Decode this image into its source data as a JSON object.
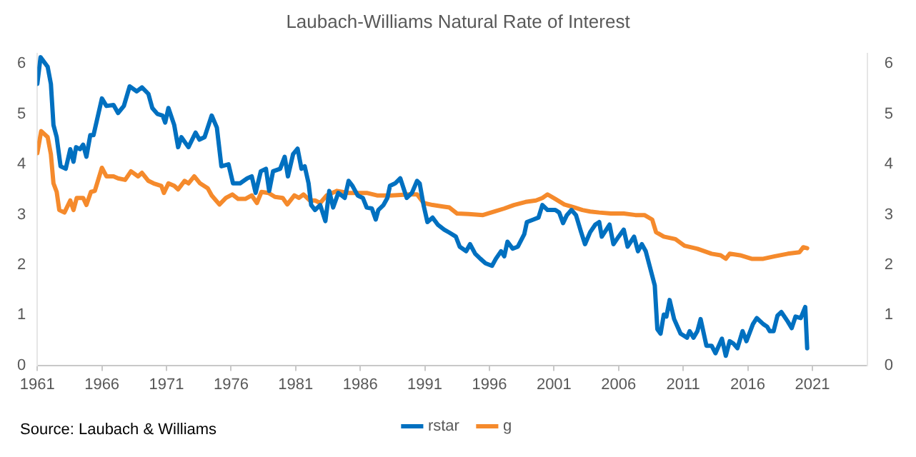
{
  "chart_data": {
    "type": "line",
    "title": "Laubach-Williams Natural Rate of Interest",
    "annotations": [
      "Source: Laubach & Williams"
    ],
    "xlim": [
      1961,
      2025.25
    ],
    "xticks": [
      1961,
      1966,
      1971,
      1976,
      1981,
      1986,
      1991,
      1996,
      2001,
      2006,
      2011,
      2016,
      2021
    ],
    "ylim": [
      0,
      6.2
    ],
    "yticks": [
      0,
      1,
      2,
      3,
      4,
      5,
      6
    ],
    "y2lim": [
      0,
      6.2
    ],
    "y2ticks": [
      0,
      1,
      2,
      3,
      4,
      5,
      6
    ],
    "grid": false,
    "legend": "bottom",
    "marker": "none",
    "line_style": "solid",
    "series": [
      {
        "name": "rstar",
        "color": "#0070c0",
        "x": [
          1961.0,
          1961.25,
          1961.8,
          1962.05,
          1962.25,
          1962.5,
          1962.8,
          1963.2,
          1963.55,
          1963.8,
          1964.0,
          1964.3,
          1964.55,
          1964.8,
          1965.1,
          1965.35,
          1966.0,
          1966.35,
          1966.9,
          1967.25,
          1967.7,
          1968.15,
          1968.7,
          1969.1,
          1969.6,
          1969.9,
          1970.3,
          1970.7,
          1970.9,
          1971.15,
          1971.6,
          1971.9,
          1972.15,
          1972.7,
          1973.25,
          1973.55,
          1973.95,
          1974.5,
          1974.9,
          1975.25,
          1975.8,
          1976.15,
          1976.7,
          1977.25,
          1977.6,
          1977.9,
          1978.3,
          1978.7,
          1978.95,
          1979.25,
          1979.8,
          1980.15,
          1980.4,
          1980.8,
          1981.15,
          1981.45,
          1981.7,
          1982.0,
          1982.2,
          1982.5,
          1982.9,
          1983.3,
          1983.6,
          1983.9,
          1984.3,
          1984.8,
          1985.1,
          1985.4,
          1985.8,
          1986.2,
          1986.5,
          1986.9,
          1987.2,
          1987.4,
          1987.8,
          1988.1,
          1988.3,
          1988.7,
          1989.1,
          1989.6,
          1990.0,
          1990.4,
          1990.6,
          1990.9,
          1991.2,
          1991.6,
          1992.0,
          1992.5,
          1992.9,
          1993.4,
          1993.7,
          1994.2,
          1994.5,
          1994.9,
          1995.3,
          1995.7,
          1996.2,
          1996.5,
          1996.9,
          1997.15,
          1997.4,
          1997.8,
          1998.2,
          1998.7,
          1998.9,
          1999.4,
          1999.8,
          2000.1,
          2000.5,
          2001.1,
          2001.4,
          2001.7,
          2002.0,
          2002.35,
          2002.7,
          2003.1,
          2003.4,
          2003.8,
          2004.2,
          2004.5,
          2004.7,
          2005.3,
          2005.6,
          2006.0,
          2006.4,
          2006.7,
          2007.2,
          2007.5,
          2007.8,
          2008.1,
          2008.4,
          2008.8,
          2009.0,
          2009.25,
          2009.5,
          2009.7,
          2009.95,
          2010.3,
          2010.8,
          2011.3,
          2011.5,
          2011.8,
          2012.1,
          2012.35,
          2012.8,
          2013.2,
          2013.5,
          2014.0,
          2014.3,
          2014.6,
          2014.9,
          2015.2,
          2015.6,
          2015.9,
          2016.4,
          2016.7,
          2017.2,
          2017.5,
          2017.7,
          2018.0,
          2018.3,
          2018.6,
          2019.1,
          2019.4,
          2019.7,
          2020.1,
          2020.45,
          2020.6
        ],
        "values": [
          5.6,
          6.13,
          5.94,
          5.6,
          4.78,
          4.54,
          3.96,
          3.91,
          4.3,
          4.05,
          4.34,
          4.3,
          4.39,
          4.15,
          4.58,
          4.58,
          5.31,
          5.16,
          5.18,
          5.02,
          5.16,
          5.55,
          5.45,
          5.53,
          5.4,
          5.12,
          5.0,
          4.97,
          4.83,
          5.12,
          4.78,
          4.34,
          4.54,
          4.34,
          4.63,
          4.49,
          4.54,
          4.97,
          4.73,
          3.96,
          4.0,
          3.62,
          3.62,
          3.72,
          3.76,
          3.43,
          3.86,
          3.91,
          3.47,
          3.86,
          3.91,
          4.15,
          3.76,
          4.2,
          4.31,
          3.91,
          3.96,
          3.62,
          3.19,
          3.09,
          3.19,
          2.87,
          3.47,
          3.14,
          3.43,
          3.33,
          3.67,
          3.57,
          3.38,
          3.33,
          3.14,
          3.12,
          2.9,
          3.09,
          3.19,
          3.33,
          3.57,
          3.62,
          3.72,
          3.33,
          3.43,
          3.67,
          3.62,
          3.19,
          2.85,
          2.94,
          2.8,
          2.7,
          2.64,
          2.56,
          2.36,
          2.27,
          2.41,
          2.22,
          2.12,
          2.03,
          1.98,
          2.12,
          2.27,
          2.17,
          2.46,
          2.32,
          2.36,
          2.61,
          2.85,
          2.9,
          2.94,
          3.19,
          3.09,
          3.09,
          3.04,
          2.83,
          2.99,
          3.09,
          2.99,
          2.65,
          2.41,
          2.65,
          2.8,
          2.85,
          2.56,
          2.8,
          2.41,
          2.56,
          2.7,
          2.36,
          2.56,
          2.27,
          2.41,
          2.27,
          1.98,
          1.59,
          0.72,
          0.63,
          1.01,
          0.97,
          1.3,
          0.92,
          0.63,
          0.55,
          0.68,
          0.55,
          0.68,
          0.92,
          0.39,
          0.39,
          0.24,
          0.53,
          0.19,
          0.48,
          0.43,
          0.34,
          0.68,
          0.48,
          0.82,
          0.94,
          0.82,
          0.77,
          0.68,
          0.68,
          0.99,
          1.06,
          0.87,
          0.74,
          0.97,
          0.94,
          1.16,
          0.34
        ]
      },
      {
        "name": "g",
        "color": "#f58a2c",
        "x": [
          1961.0,
          1961.3,
          1961.8,
          1962.05,
          1962.25,
          1962.5,
          1962.7,
          1963.1,
          1963.55,
          1963.8,
          1964.05,
          1964.55,
          1964.8,
          1965.15,
          1965.45,
          1966.0,
          1966.35,
          1966.9,
          1967.25,
          1967.8,
          1968.25,
          1968.8,
          1969.1,
          1969.6,
          1970.0,
          1970.6,
          1970.8,
          1971.15,
          1971.6,
          1971.9,
          1972.4,
          1972.7,
          1973.15,
          1973.6,
          1974.2,
          1974.5,
          1975.1,
          1975.6,
          1976.1,
          1976.55,
          1977.1,
          1977.6,
          1978.0,
          1978.35,
          1978.9,
          1979.4,
          1980.0,
          1980.35,
          1980.9,
          1981.25,
          1981.6,
          1982.1,
          1982.5,
          1982.9,
          1983.4,
          1984.2,
          1985.1,
          1986.5,
          1987.3,
          1988.4,
          1989.8,
          1990.4,
          1990.9,
          1991.6,
          1992.4,
          1992.9,
          1993.5,
          1994.4,
          1995.5,
          1996.4,
          1997.15,
          1997.9,
          1998.8,
          1999.6,
          2000.1,
          2000.5,
          2001.1,
          2001.8,
          2002.6,
          2003.2,
          2003.8,
          2004.5,
          2005.4,
          2006.4,
          2007.3,
          2008.0,
          2008.6,
          2008.9,
          2009.5,
          2010.4,
          2011.1,
          2012.1,
          2013.2,
          2013.9,
          2014.3,
          2014.6,
          2015.4,
          2016.3,
          2017.2,
          2018.1,
          2019.1,
          2020.0,
          2020.3,
          2020.6
        ],
        "values": [
          4.22,
          4.66,
          4.54,
          4.2,
          3.62,
          3.45,
          3.09,
          3.04,
          3.28,
          3.09,
          3.33,
          3.33,
          3.19,
          3.45,
          3.47,
          3.93,
          3.76,
          3.76,
          3.72,
          3.69,
          3.86,
          3.76,
          3.83,
          3.67,
          3.62,
          3.57,
          3.43,
          3.62,
          3.57,
          3.5,
          3.67,
          3.62,
          3.76,
          3.62,
          3.52,
          3.38,
          3.2,
          3.33,
          3.4,
          3.31,
          3.31,
          3.38,
          3.23,
          3.45,
          3.43,
          3.35,
          3.33,
          3.2,
          3.38,
          3.33,
          3.4,
          3.28,
          3.28,
          3.23,
          3.38,
          3.47,
          3.43,
          3.43,
          3.38,
          3.38,
          3.4,
          3.4,
          3.23,
          3.19,
          3.16,
          3.14,
          3.02,
          3.01,
          2.99,
          3.06,
          3.12,
          3.19,
          3.25,
          3.28,
          3.33,
          3.4,
          3.31,
          3.2,
          3.14,
          3.09,
          3.06,
          3.04,
          3.02,
          3.02,
          2.99,
          2.99,
          2.9,
          2.65,
          2.56,
          2.51,
          2.38,
          2.32,
          2.22,
          2.19,
          2.12,
          2.22,
          2.19,
          2.12,
          2.12,
          2.17,
          2.22,
          2.25,
          2.35,
          2.33
        ]
      }
    ]
  }
}
